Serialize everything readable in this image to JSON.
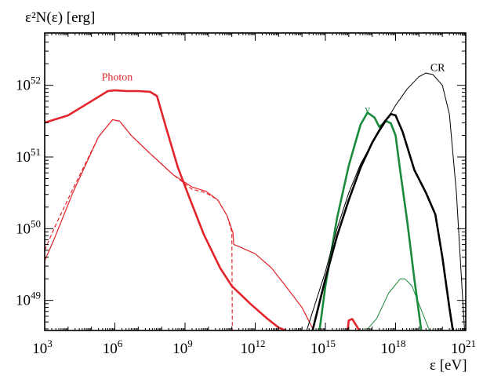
{
  "chart_data": {
    "type": "line",
    "ylabel": "ε²N(ε) [erg]",
    "xlabel": "ε [eV]",
    "log_x": true,
    "log_y": true,
    "xlim_log10": [
      3,
      21
    ],
    "ylim_log10": [
      48.58,
      52.73
    ],
    "x_ticks": [
      {
        "exp": 3,
        "base": "10",
        "sup": "3"
      },
      {
        "exp": 6,
        "base": "10",
        "sup": "6"
      },
      {
        "exp": 9,
        "base": "10",
        "sup": "9"
      },
      {
        "exp": 12,
        "base": "10",
        "sup": "12"
      },
      {
        "exp": 15,
        "base": "10",
        "sup": "15"
      },
      {
        "exp": 18,
        "base": "10",
        "sup": "18"
      },
      {
        "exp": 21,
        "base": "10",
        "sup": "21"
      }
    ],
    "y_ticks": [
      {
        "exp": 49,
        "base": "10",
        "sup": "49"
      },
      {
        "exp": 50,
        "base": "10",
        "sup": "50"
      },
      {
        "exp": 51,
        "base": "10",
        "sup": "51"
      },
      {
        "exp": 52,
        "base": "10",
        "sup": "52"
      }
    ],
    "annotations": [
      {
        "text": "Photon",
        "color": "#e3242b",
        "log_x": 6.1,
        "log_y": 52.07
      },
      {
        "text": "ν",
        "color": "#1a8a3c",
        "log_x": 16.8,
        "log_y": 51.62
      },
      {
        "text": "CR",
        "color": "#000000",
        "log_x": 19.8,
        "log_y": 52.2
      }
    ],
    "series": [
      {
        "key": "photon_bold",
        "color": "#e3242b",
        "width": 2.6,
        "dash": false,
        "points": [
          [
            3,
            51.48
          ],
          [
            4,
            51.58
          ],
          [
            5,
            51.78
          ],
          [
            5.7,
            51.92
          ],
          [
            6,
            51.93
          ],
          [
            6.5,
            51.92
          ],
          [
            7,
            51.92
          ],
          [
            7.5,
            51.91
          ],
          [
            7.8,
            51.85
          ],
          [
            8.2,
            51.4
          ],
          [
            8.7,
            50.85
          ],
          [
            9.2,
            50.42
          ],
          [
            9.8,
            49.92
          ],
          [
            10.5,
            49.45
          ],
          [
            11,
            49.2
          ],
          [
            11.8,
            48.95
          ],
          [
            12.5,
            48.75
          ],
          [
            13,
            48.62
          ],
          [
            13.3,
            48.58
          ]
        ]
      },
      {
        "key": "photon_thin",
        "color": "#e3242b",
        "width": 1.2,
        "dash": false,
        "points": [
          [
            3,
            49.55
          ],
          [
            3.4,
            49.85
          ],
          [
            4.2,
            50.5
          ],
          [
            5.3,
            51.28
          ],
          [
            5.9,
            51.52
          ],
          [
            6.2,
            51.5
          ],
          [
            6.7,
            51.3
          ],
          [
            7.5,
            51.05
          ],
          [
            8.5,
            50.75
          ],
          [
            9.3,
            50.58
          ],
          [
            9.9,
            50.52
          ],
          [
            10.4,
            50.4
          ],
          [
            10.8,
            50.18
          ],
          [
            11.05,
            49.94
          ],
          [
            11.08,
            49.78
          ],
          [
            11.3,
            49.75
          ],
          [
            12,
            49.65
          ],
          [
            12.7,
            49.45
          ],
          [
            13.3,
            49.2
          ],
          [
            14,
            48.9
          ],
          [
            14.5,
            48.58
          ]
        ]
      },
      {
        "key": "photon_dashed",
        "color": "#e3242b",
        "width": 1.2,
        "dash": true,
        "points": [
          [
            3,
            49.7
          ],
          [
            3.4,
            50
          ],
          [
            4.2,
            50.55
          ],
          [
            5.3,
            51.28
          ],
          [
            5.9,
            51.52
          ],
          [
            6.2,
            51.5
          ],
          [
            6.7,
            51.3
          ],
          [
            7.5,
            51.05
          ],
          [
            8.5,
            50.75
          ],
          [
            9.3,
            50.55
          ],
          [
            9.9,
            50.5
          ],
          [
            10.4,
            50.4
          ],
          [
            10.8,
            50.18
          ],
          [
            11.0,
            49.95
          ],
          [
            11.02,
            48.58
          ]
        ]
      },
      {
        "key": "photon_spike",
        "color": "#e3242b",
        "width": 2.6,
        "dash": false,
        "points": [
          [
            15.95,
            48.58
          ],
          [
            16,
            48.72
          ],
          [
            16.15,
            48.74
          ],
          [
            16.3,
            48.66
          ],
          [
            16.45,
            48.58
          ]
        ]
      },
      {
        "key": "neutrino_bold",
        "color": "#1a8a3c",
        "width": 2.6,
        "dash": false,
        "points": [
          [
            14.75,
            48.58
          ],
          [
            15,
            49.2
          ],
          [
            15.5,
            50.15
          ],
          [
            16,
            50.88
          ],
          [
            16.5,
            51.45
          ],
          [
            16.8,
            51.62
          ],
          [
            17.1,
            51.55
          ],
          [
            17.3,
            51.42
          ],
          [
            17.6,
            51.5
          ],
          [
            17.8,
            51.47
          ],
          [
            18,
            51.3
          ],
          [
            18.2,
            50.8
          ],
          [
            18.5,
            50.1
          ],
          [
            18.8,
            49.3
          ],
          [
            19.1,
            48.58
          ]
        ]
      },
      {
        "key": "neutrino_thin",
        "color": "#1a8a3c",
        "width": 1.0,
        "dash": false,
        "points": [
          [
            16.8,
            48.6
          ],
          [
            17.2,
            48.75
          ],
          [
            17.7,
            49.1
          ],
          [
            18.2,
            49.3
          ],
          [
            18.4,
            49.3
          ],
          [
            18.7,
            49.2
          ],
          [
            19,
            48.95
          ],
          [
            19.3,
            48.7
          ],
          [
            19.45,
            48.58
          ]
        ]
      },
      {
        "key": "cr_bold",
        "color": "#000000",
        "width": 2.6,
        "dash": false,
        "points": [
          [
            14.45,
            48.58
          ],
          [
            15,
            49.3
          ],
          [
            15.5,
            49.9
          ],
          [
            16,
            50.4
          ],
          [
            16.5,
            50.85
          ],
          [
            17,
            51.2
          ],
          [
            17.5,
            51.48
          ],
          [
            17.8,
            51.6
          ],
          [
            18,
            51.58
          ],
          [
            18.3,
            51.35
          ],
          [
            18.8,
            50.82
          ],
          [
            19.3,
            50.5
          ],
          [
            19.7,
            50.2
          ],
          [
            20,
            49.6
          ],
          [
            20.3,
            48.9
          ],
          [
            20.45,
            48.58
          ]
        ]
      },
      {
        "key": "cr_thin",
        "color": "#000000",
        "width": 1.0,
        "dash": false,
        "points": [
          [
            14.2,
            48.58
          ],
          [
            15,
            49.4
          ],
          [
            15.5,
            50
          ],
          [
            16,
            50.5
          ],
          [
            16.5,
            50.9
          ],
          [
            17,
            51.2
          ],
          [
            17.5,
            51.45
          ],
          [
            18,
            51.72
          ],
          [
            18.5,
            51.95
          ],
          [
            19,
            52.12
          ],
          [
            19.3,
            52.17
          ],
          [
            19.6,
            52.15
          ],
          [
            20,
            52
          ],
          [
            20.3,
            51.6
          ],
          [
            20.6,
            50.5
          ],
          [
            20.8,
            49.4
          ],
          [
            20.95,
            48.58
          ]
        ]
      }
    ]
  }
}
